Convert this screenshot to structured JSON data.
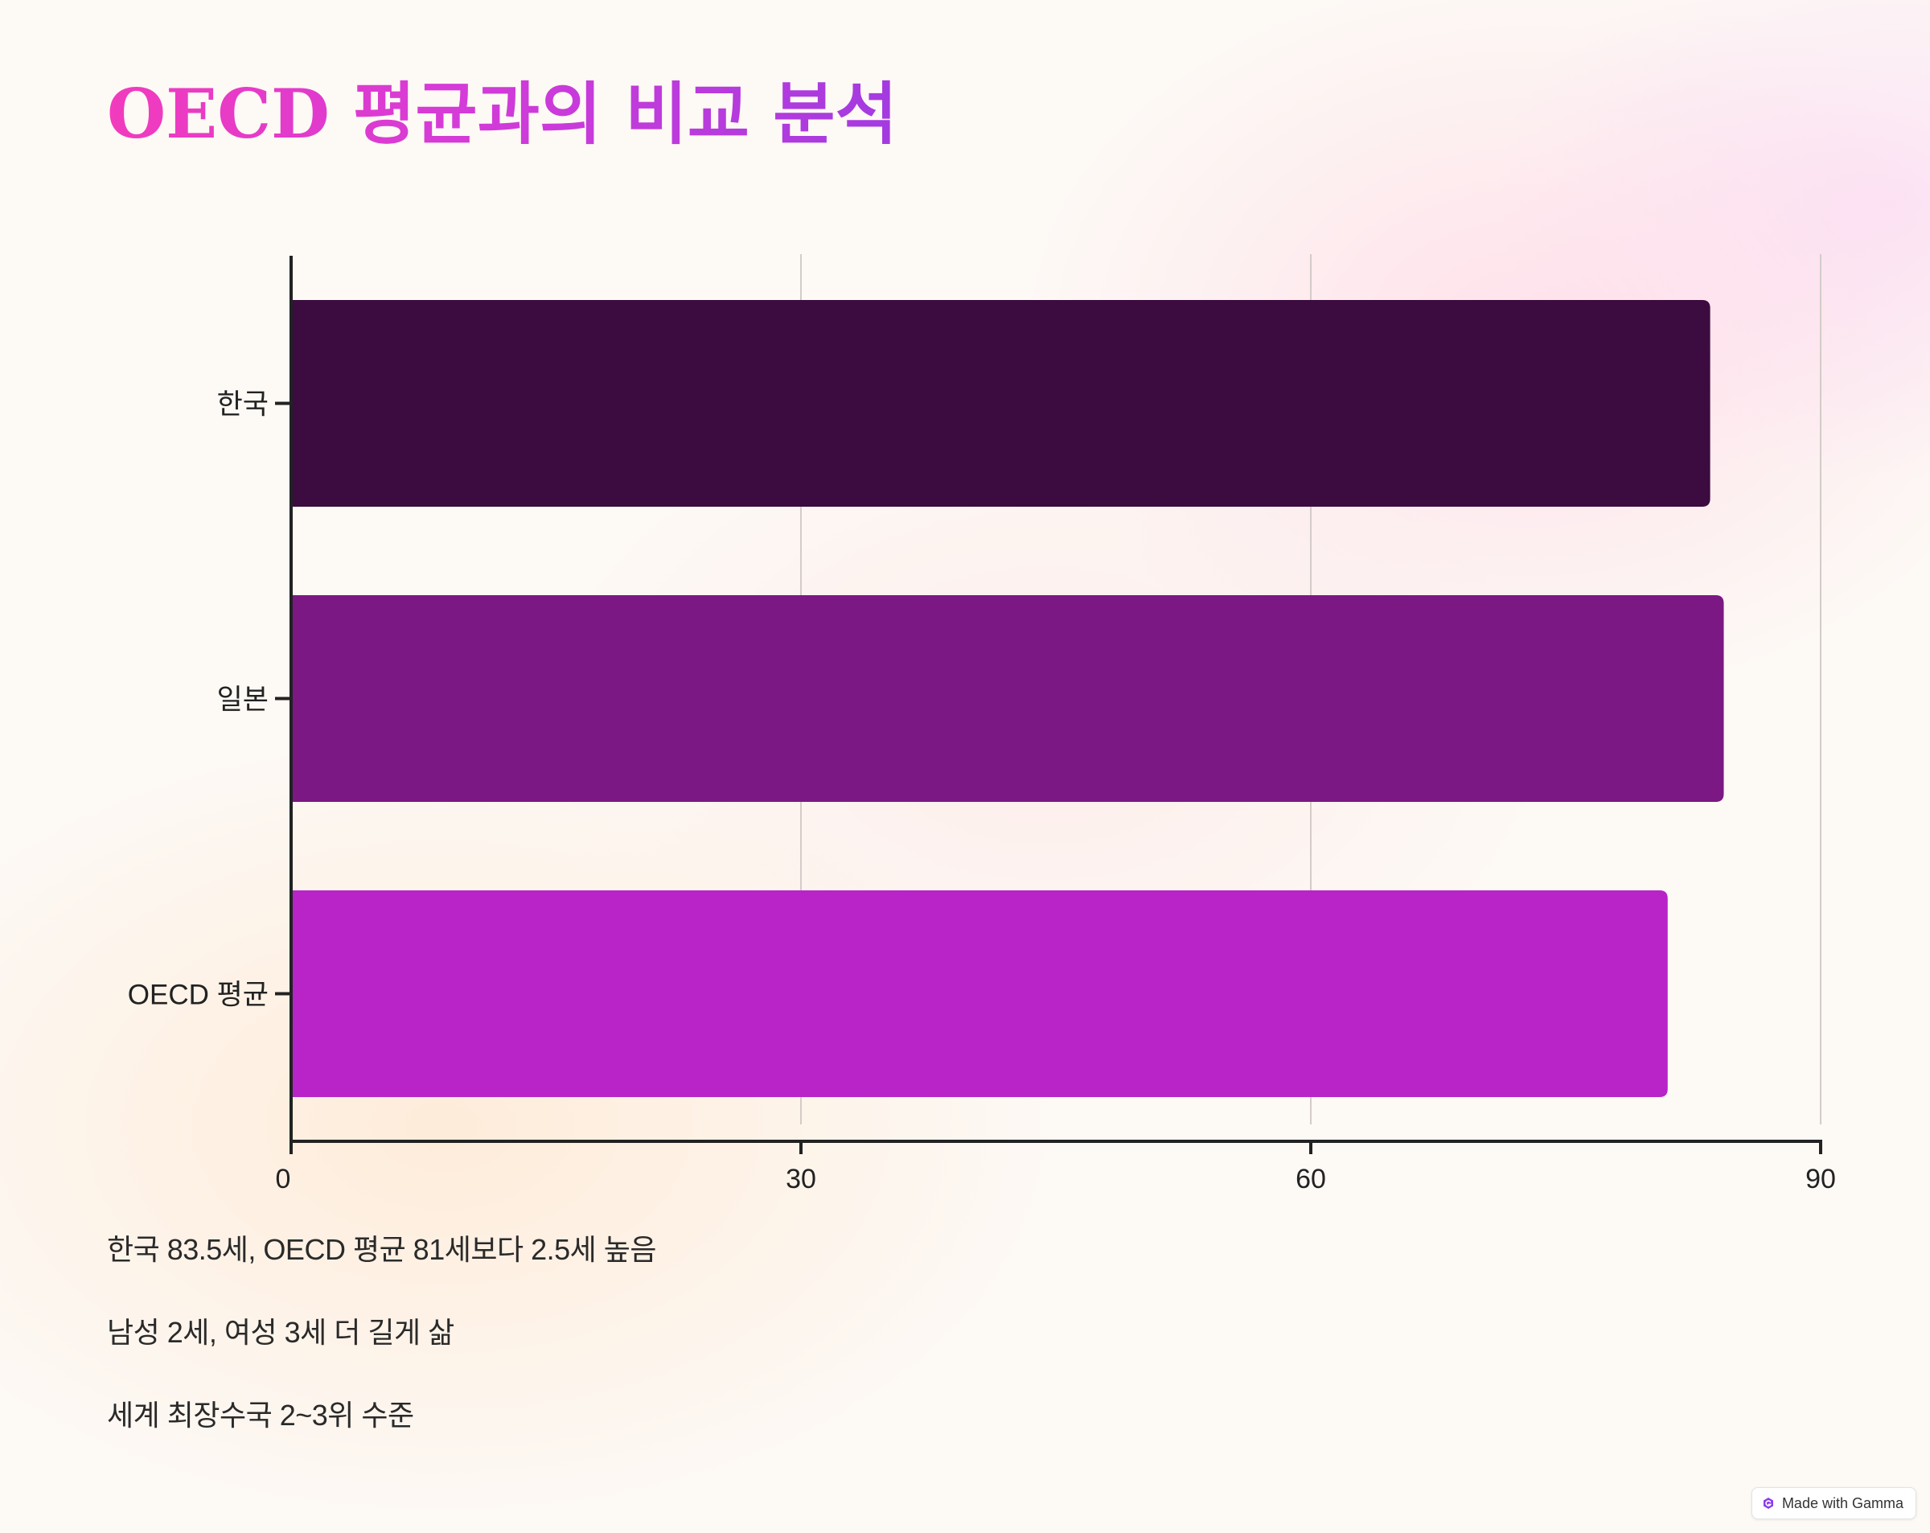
{
  "title": "OECD 평균과의 비교 분석",
  "chart_data": {
    "type": "bar",
    "orientation": "horizontal",
    "categories": [
      "한국",
      "일본",
      "OECD 평균"
    ],
    "values": [
      83.5,
      84.3,
      81
    ],
    "colors": [
      "#3c0b3f",
      "#7b1883",
      "#b824c8"
    ],
    "xlim": [
      0,
      90
    ],
    "xticks": [
      0,
      30,
      60,
      90
    ],
    "xlabel": "",
    "ylabel": "",
    "grid": true,
    "legend": "none"
  },
  "notes": [
    "한국 83.5세, OECD 평균 81세보다 2.5세 높음",
    "남성 2세, 여성 3세 더 길게 삶",
    "세계 최장수국 2~3위 수준"
  ],
  "badge": {
    "label": "Made with Gamma",
    "icon": "gamma-logo-icon",
    "icon_color": "#8b3cf0"
  }
}
